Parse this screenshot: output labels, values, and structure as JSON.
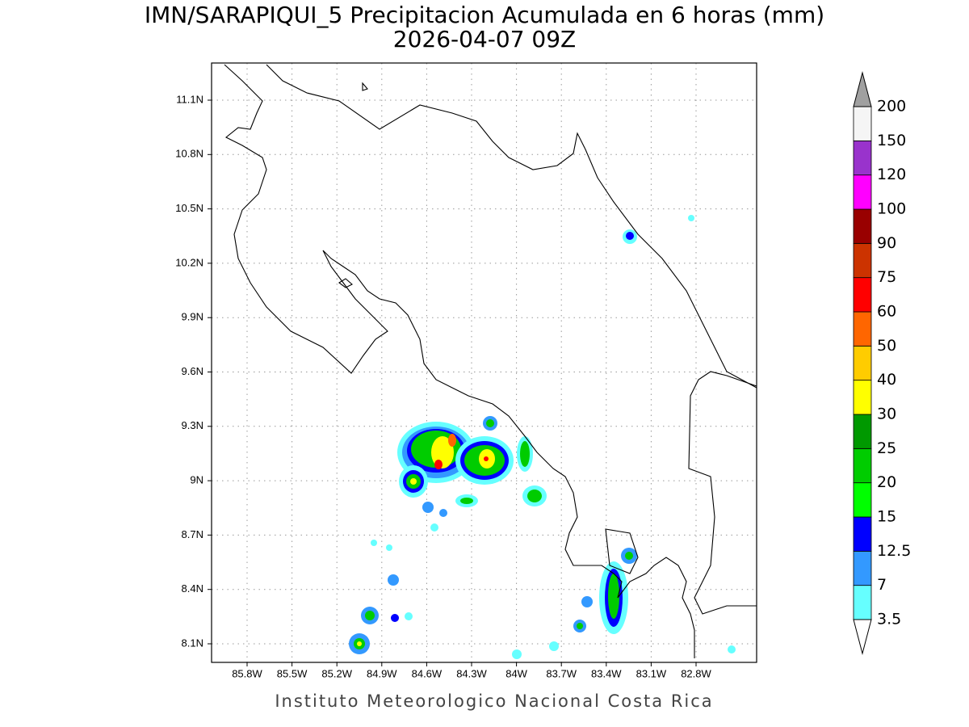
{
  "header": {
    "title": "IMN/SARAPIQUI_5 Precipitacion Acumulada en 6 horas (mm)",
    "subtitle": "2026-04-07 09Z"
  },
  "map": {
    "lon_ticks": [
      "85.8W",
      "85.5W",
      "85.2W",
      "84.9W",
      "84.6W",
      "84.3W",
      "84W",
      "83.7W",
      "83.4W",
      "83.1W",
      "82.8W"
    ],
    "lat_ticks": [
      "11.1N",
      "10.8N",
      "10.5N",
      "10.2N",
      "9.9N",
      "9.6N",
      "9.3N",
      "9N",
      "8.7N",
      "8.4N",
      "8.1N"
    ]
  },
  "colorbar": {
    "levels": [
      3.5,
      7,
      12.5,
      15,
      20,
      25,
      30,
      40,
      50,
      60,
      75,
      90,
      100,
      120,
      150,
      200
    ],
    "colors": [
      "#66ffff",
      "#3399ff",
      "#0000ff",
      "#00ff00",
      "#00cc00",
      "#009900",
      "#ffff00",
      "#ffcc00",
      "#ff6600",
      "#ff0000",
      "#cc3300",
      "#990000",
      "#ff00ff",
      "#9933cc",
      "#f5f5f5"
    ],
    "under_color": "#ffffff",
    "over_color": "#a0a0a0"
  },
  "footer": "Instituto Meteorologico Nacional Costa Rica"
}
